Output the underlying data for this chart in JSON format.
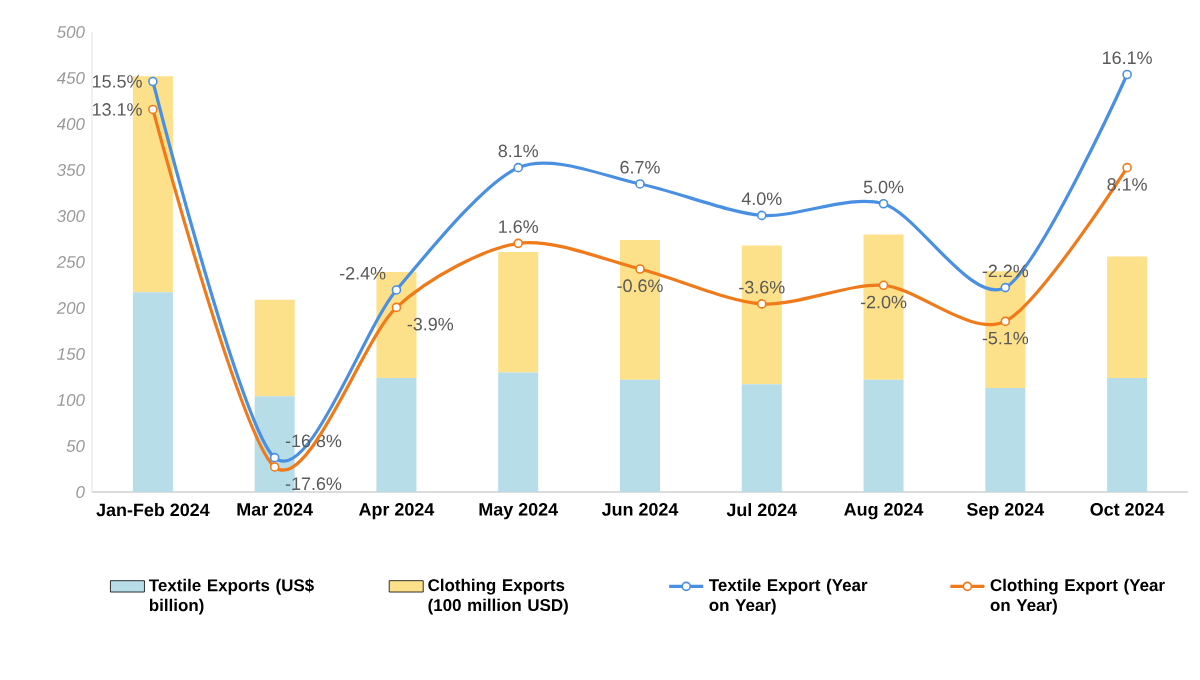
{
  "chart_data": {
    "type": "bar",
    "stacked": true,
    "categories": [
      "Jan-Feb 2024",
      "Mar 2024",
      "Apr 2024",
      "May 2024",
      "Jun 2024",
      "Jul 2024",
      "Aug 2024",
      "Sep 2024",
      "Oct 2024"
    ],
    "series": [
      {
        "name": "Textile Exports (US$ billion)",
        "color": "#b7dde8",
        "values": [
          217,
          104,
          124,
          130,
          122,
          117,
          122,
          113,
          124
        ]
      },
      {
        "name": "Clothing Exports (100 million USD)",
        "color": "#fde08a",
        "values": [
          235,
          105,
          115,
          131,
          152,
          151,
          158,
          127,
          132
        ]
      },
      {
        "name": "Textile Export (Year on Year)",
        "type": "line",
        "axis": "y2",
        "color": "#4a90e2",
        "marker": "circle",
        "values": [
          15.5,
          -16.8,
          -2.4,
          8.1,
          6.7,
          4.0,
          5.0,
          -2.2,
          16.1
        ],
        "value_labels": [
          "15.5%",
          "-16.8%",
          "-2.4%",
          "8.1%",
          "6.7%",
          "4.0%",
          "5.0%",
          "-2.2%",
          "16.1%"
        ]
      },
      {
        "name": "Clothing Export (Year on Year)",
        "type": "line",
        "axis": "y2",
        "color": "#f07a1a",
        "marker": "circle",
        "values": [
          13.1,
          -17.6,
          -3.9,
          1.6,
          -0.6,
          -3.6,
          -2.0,
          -5.1,
          8.1
        ],
        "value_labels": [
          "13.1%",
          "-17.6%",
          "-3.9%",
          "1.6%",
          "-0.6%",
          "-3.6%",
          "-2.0%",
          "-5.1%",
          "8.1%"
        ]
      }
    ],
    "ylim": [
      0,
      500
    ],
    "yticks": [
      0,
      50,
      100,
      150,
      200,
      250,
      300,
      350,
      400,
      450,
      500
    ],
    "y2lim": [
      -19.75,
      19.75
    ],
    "grid": false,
    "legend": "bottom"
  }
}
